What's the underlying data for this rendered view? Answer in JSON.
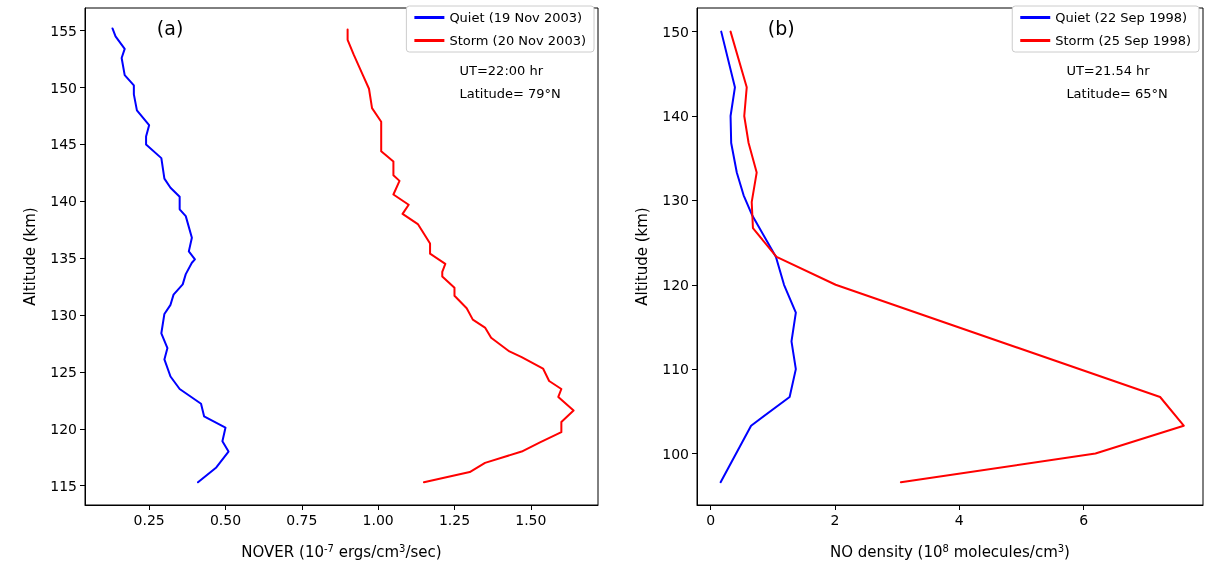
{
  "chart_data": [
    {
      "type": "line",
      "xlabel": "NOVER (10$^{-7}$ ergs/cm$^{3}$/sec)",
      "ylabel": "Altitude (km)",
      "annotations": [
        "(a)",
        "UT=22:00 hr",
        "Latitude= 79°N"
      ],
      "xlim": [
        0.04,
        1.72
      ],
      "ylim": [
        113.3,
        157
      ],
      "xticks": [
        0.25,
        {
          "value": 0.5,
          "label": "0.50"
        },
        0.75,
        {
          "value": 1,
          "label": "1.00"
        },
        1.25,
        {
          "value": 1.5,
          "label": "1.50"
        }
      ],
      "yticks": [
        115,
        120,
        125,
        130,
        135,
        140,
        145,
        150,
        155
      ],
      "grid": false,
      "legend": "top right",
      "line_style": "solid",
      "series": [
        {
          "name": "Quiet (19 Nov 2003)",
          "color": "#0000ff",
          "x": [
            0.13,
            0.14,
            0.17,
            0.16,
            0.17,
            0.2,
            0.2,
            0.21,
            0.25,
            0.24,
            0.24,
            0.29,
            0.3,
            0.32,
            0.35,
            0.35,
            0.37,
            0.39,
            0.38,
            0.4,
            0.39,
            0.37,
            0.36,
            0.33,
            0.32,
            0.3,
            0.29,
            0.31,
            0.3,
            0.32,
            0.35,
            0.42,
            0.43,
            0.5,
            0.49,
            0.51,
            0.47,
            0.41
          ],
          "values": [
            155.2,
            154.5,
            153.4,
            152.6,
            151.1,
            150.2,
            149.4,
            148,
            146.7,
            145.7,
            145,
            143.8,
            142,
            141.2,
            140.4,
            139.3,
            138.7,
            136.8,
            135.6,
            134.9,
            134.6,
            133.6,
            132.7,
            131.8,
            130.9,
            130.1,
            128.4,
            127.1,
            126.1,
            124.6,
            123.5,
            122.2,
            121.1,
            120.1,
            118.9,
            118,
            116.6,
            115.3
          ]
        },
        {
          "name": "Storm (20 Nov 2003)",
          "color": "#ff0000",
          "x": [
            0.9,
            0.9,
            0.92,
            0.95,
            0.97,
            0.98,
            1.01,
            1.01,
            1.01,
            1.05,
            1.05,
            1.07,
            1.05,
            1.1,
            1.08,
            1.13,
            1.17,
            1.17,
            1.22,
            1.21,
            1.21,
            1.25,
            1.25,
            1.29,
            1.31,
            1.35,
            1.37,
            1.43,
            1.47,
            1.54,
            1.56,
            1.6,
            1.59,
            1.64,
            1.6,
            1.6,
            1.53,
            1.47,
            1.35,
            1.3,
            1.15
          ],
          "values": [
            155.1,
            154.2,
            152.9,
            151.1,
            149.9,
            148.2,
            147,
            145.3,
            144.4,
            143.5,
            142.3,
            141.8,
            140.6,
            139.7,
            138.9,
            138,
            136.3,
            135.4,
            134.5,
            133.8,
            133.4,
            132.4,
            131.7,
            130.6,
            129.6,
            128.9,
            128,
            126.8,
            126.3,
            125.3,
            124.2,
            123.5,
            122.8,
            121.6,
            120.6,
            119.7,
            118.8,
            118,
            117,
            116.2,
            115.3
          ]
        }
      ]
    },
    {
      "type": "line",
      "xlabel": "NO density (10$^{8}$ molecules/cm$^{3}$)",
      "ylabel": "Altitude (km)",
      "annotations": [
        "(b)",
        "UT=21.54 hr",
        "Latitude= 65°N"
      ],
      "xlim": [
        -0.22,
        7.92
      ],
      "ylim": [
        93.9,
        152.8
      ],
      "xticks": [
        0,
        2,
        4,
        6
      ],
      "yticks": [
        100,
        110,
        120,
        130,
        140,
        150
      ],
      "grid": false,
      "legend": "top right",
      "line_style": "solid",
      "series": [
        {
          "name": "Quiet (22 Sep 1998)",
          "color": "#0000ff",
          "x": [
            0.17,
            0.39,
            0.32,
            0.33,
            0.42,
            0.53,
            0.67,
            1.05,
            1.18,
            1.37,
            1.3,
            1.37,
            1.27,
            0.65,
            0.16
          ],
          "values": [
            150,
            143.4,
            140,
            136.8,
            133.3,
            130.6,
            128.2,
            123.3,
            120,
            116.7,
            113.3,
            110,
            106.7,
            103.3,
            96.6
          ]
        },
        {
          "name": "Storm (25 Sep 1998)",
          "color": "#ff0000",
          "x": [
            0.32,
            0.58,
            0.54,
            0.61,
            0.74,
            0.66,
            0.68,
            1.06,
            2.01,
            7.23,
            7.61,
            6.19,
            3.06
          ],
          "values": [
            150,
            143.4,
            140,
            136.8,
            133.3,
            129.8,
            126.7,
            123.3,
            120,
            106.7,
            103.3,
            100,
            96.6
          ]
        }
      ]
    }
  ]
}
